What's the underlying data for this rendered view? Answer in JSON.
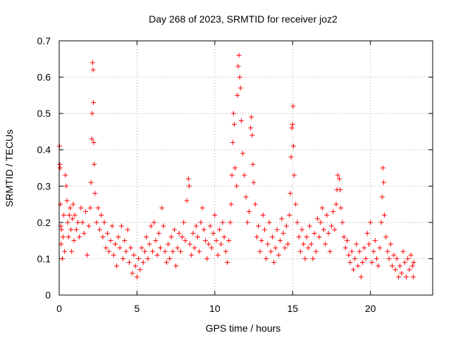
{
  "chart_data": {
    "type": "scatter",
    "title": "Day 268 of 2023, SRMTID for receiver joz2",
    "xlabel": "GPS time / hours",
    "ylabel": "SRMTID / TECUs",
    "xlim": [
      0,
      24
    ],
    "ylim": [
      0,
      0.7
    ],
    "grid": true,
    "marker": "+",
    "color": "#ff0000",
    "xticks": [
      0,
      5,
      10,
      15,
      20
    ],
    "xtick_labels": [
      "0",
      "5",
      "10",
      "15",
      "20"
    ],
    "yticks": [
      0,
      0.1,
      0.2,
      0.3,
      0.4,
      0.5,
      0.6,
      0.7
    ],
    "ytick_labels": [
      "0",
      "0.1",
      "0.2",
      "0.3",
      "0.4",
      "0.5",
      "0.6",
      "0.7"
    ],
    "series": [
      {
        "name": "SRMTID",
        "points": [
          [
            0.02,
            0.41
          ],
          [
            0.04,
            0.36
          ],
          [
            0.06,
            0.35
          ],
          [
            0.08,
            0.25
          ],
          [
            0.1,
            0.19
          ],
          [
            0.12,
            0.14
          ],
          [
            0.15,
            0.18
          ],
          [
            0.2,
            0.1
          ],
          [
            0.25,
            0.16
          ],
          [
            0.3,
            0.22
          ],
          [
            0.35,
            0.12
          ],
          [
            0.4,
            0.33
          ],
          [
            0.45,
            0.3
          ],
          [
            0.5,
            0.26
          ],
          [
            0.55,
            0.2
          ],
          [
            0.6,
            0.16
          ],
          [
            0.65,
            0.22
          ],
          [
            0.7,
            0.24
          ],
          [
            0.75,
            0.18
          ],
          [
            0.8,
            0.12
          ],
          [
            0.85,
            0.21
          ],
          [
            0.9,
            0.25
          ],
          [
            0.95,
            0.15
          ],
          [
            1.0,
            0.22
          ],
          [
            1.1,
            0.18
          ],
          [
            1.2,
            0.2
          ],
          [
            1.3,
            0.16
          ],
          [
            1.4,
            0.24
          ],
          [
            1.5,
            0.2
          ],
          [
            1.6,
            0.17
          ],
          [
            1.7,
            0.23
          ],
          [
            1.8,
            0.11
          ],
          [
            1.9,
            0.19
          ],
          [
            2.0,
            0.24
          ],
          [
            2.05,
            0.31
          ],
          [
            2.1,
            0.43
          ],
          [
            2.12,
            0.5
          ],
          [
            2.15,
            0.64
          ],
          [
            2.18,
            0.62
          ],
          [
            2.2,
            0.53
          ],
          [
            2.22,
            0.42
          ],
          [
            2.25,
            0.36
          ],
          [
            2.3,
            0.28
          ],
          [
            2.4,
            0.2
          ],
          [
            2.5,
            0.24
          ],
          [
            2.6,
            0.18
          ],
          [
            2.7,
            0.22
          ],
          [
            2.8,
            0.16
          ],
          [
            2.9,
            0.2
          ],
          [
            3.0,
            0.13
          ],
          [
            3.1,
            0.17
          ],
          [
            3.2,
            0.12
          ],
          [
            3.3,
            0.15
          ],
          [
            3.4,
            0.19
          ],
          [
            3.5,
            0.11
          ],
          [
            3.6,
            0.14
          ],
          [
            3.7,
            0.08
          ],
          [
            3.8,
            0.16
          ],
          [
            3.9,
            0.13
          ],
          [
            4.0,
            0.19
          ],
          [
            4.1,
            0.1
          ],
          [
            4.2,
            0.15
          ],
          [
            4.3,
            0.12
          ],
          [
            4.4,
            0.18
          ],
          [
            4.5,
            0.09
          ],
          [
            4.6,
            0.13
          ],
          [
            4.7,
            0.06
          ],
          [
            4.8,
            0.11
          ],
          [
            4.9,
            0.08
          ],
          [
            5.0,
            0.05
          ],
          [
            5.1,
            0.1
          ],
          [
            5.2,
            0.07
          ],
          [
            5.3,
            0.13
          ],
          [
            5.4,
            0.09
          ],
          [
            5.5,
            0.12
          ],
          [
            5.6,
            0.16
          ],
          [
            5.7,
            0.1
          ],
          [
            5.8,
            0.14
          ],
          [
            5.9,
            0.19
          ],
          [
            6.0,
            0.12
          ],
          [
            6.1,
            0.2
          ],
          [
            6.2,
            0.15
          ],
          [
            6.3,
            0.11
          ],
          [
            6.4,
            0.17
          ],
          [
            6.5,
            0.13
          ],
          [
            6.6,
            0.24
          ],
          [
            6.7,
            0.19
          ],
          [
            6.8,
            0.12
          ],
          [
            6.9,
            0.09
          ],
          [
            7.0,
            0.14
          ],
          [
            7.1,
            0.1
          ],
          [
            7.2,
            0.16
          ],
          [
            7.3,
            0.12
          ],
          [
            7.4,
            0.18
          ],
          [
            7.5,
            0.08
          ],
          [
            7.6,
            0.13
          ],
          [
            7.7,
            0.17
          ],
          [
            7.8,
            0.12
          ],
          [
            7.9,
            0.16
          ],
          [
            8.0,
            0.2
          ],
          [
            8.1,
            0.15
          ],
          [
            8.2,
            0.26
          ],
          [
            8.3,
            0.32
          ],
          [
            8.35,
            0.3
          ],
          [
            8.4,
            0.14
          ],
          [
            8.5,
            0.11
          ],
          [
            8.6,
            0.17
          ],
          [
            8.7,
            0.13
          ],
          [
            8.8,
            0.19
          ],
          [
            8.9,
            0.16
          ],
          [
            9.0,
            0.12
          ],
          [
            9.1,
            0.2
          ],
          [
            9.2,
            0.24
          ],
          [
            9.3,
            0.18
          ],
          [
            9.4,
            0.15
          ],
          [
            9.5,
            0.1
          ],
          [
            9.6,
            0.14
          ],
          [
            9.7,
            0.19
          ],
          [
            9.8,
            0.13
          ],
          [
            9.9,
            0.17
          ],
          [
            10.0,
            0.22
          ],
          [
            10.1,
            0.15
          ],
          [
            10.2,
            0.11
          ],
          [
            10.3,
            0.18
          ],
          [
            10.4,
            0.14
          ],
          [
            10.5,
            0.2
          ],
          [
            10.6,
            0.16
          ],
          [
            10.7,
            0.12
          ],
          [
            10.8,
            0.09
          ],
          [
            10.9,
            0.15
          ],
          [
            11.0,
            0.2
          ],
          [
            11.05,
            0.25
          ],
          [
            11.1,
            0.33
          ],
          [
            11.15,
            0.42
          ],
          [
            11.2,
            0.5
          ],
          [
            11.25,
            0.47
          ],
          [
            11.3,
            0.35
          ],
          [
            11.4,
            0.3
          ],
          [
            11.45,
            0.55
          ],
          [
            11.5,
            0.63
          ],
          [
            11.55,
            0.66
          ],
          [
            11.6,
            0.6
          ],
          [
            11.65,
            0.57
          ],
          [
            11.7,
            0.48
          ],
          [
            11.8,
            0.39
          ],
          [
            11.9,
            0.33
          ],
          [
            12.0,
            0.27
          ],
          [
            12.1,
            0.2
          ],
          [
            12.2,
            0.23
          ],
          [
            12.3,
            0.46
          ],
          [
            12.35,
            0.49
          ],
          [
            12.4,
            0.44
          ],
          [
            12.45,
            0.36
          ],
          [
            12.5,
            0.31
          ],
          [
            12.6,
            0.25
          ],
          [
            12.7,
            0.16
          ],
          [
            12.8,
            0.19
          ],
          [
            12.9,
            0.12
          ],
          [
            13.0,
            0.15
          ],
          [
            13.1,
            0.22
          ],
          [
            13.2,
            0.18
          ],
          [
            13.3,
            0.1
          ],
          [
            13.4,
            0.14
          ],
          [
            13.5,
            0.2
          ],
          [
            13.6,
            0.12
          ],
          [
            13.7,
            0.16
          ],
          [
            13.8,
            0.09
          ],
          [
            13.9,
            0.13
          ],
          [
            14.0,
            0.18
          ],
          [
            14.1,
            0.11
          ],
          [
            14.2,
            0.15
          ],
          [
            14.3,
            0.21
          ],
          [
            14.4,
            0.17
          ],
          [
            14.5,
            0.13
          ],
          [
            14.6,
            0.19
          ],
          [
            14.7,
            0.14
          ],
          [
            14.8,
            0.22
          ],
          [
            14.85,
            0.28
          ],
          [
            14.9,
            0.38
          ],
          [
            14.95,
            0.46
          ],
          [
            15.0,
            0.47
          ],
          [
            15.03,
            0.52
          ],
          [
            15.05,
            0.41
          ],
          [
            15.1,
            0.33
          ],
          [
            15.2,
            0.25
          ],
          [
            15.3,
            0.2
          ],
          [
            15.4,
            0.16
          ],
          [
            15.5,
            0.12
          ],
          [
            15.6,
            0.18
          ],
          [
            15.7,
            0.14
          ],
          [
            15.8,
            0.1
          ],
          [
            15.9,
            0.16
          ],
          [
            16.0,
            0.13
          ],
          [
            16.1,
            0.19
          ],
          [
            16.2,
            0.14
          ],
          [
            16.3,
            0.1
          ],
          [
            16.4,
            0.17
          ],
          [
            16.5,
            0.12
          ],
          [
            16.6,
            0.21
          ],
          [
            16.7,
            0.16
          ],
          [
            16.8,
            0.2
          ],
          [
            16.9,
            0.24
          ],
          [
            17.0,
            0.18
          ],
          [
            17.1,
            0.14
          ],
          [
            17.2,
            0.22
          ],
          [
            17.3,
            0.17
          ],
          [
            17.4,
            0.12
          ],
          [
            17.5,
            0.19
          ],
          [
            17.6,
            0.23
          ],
          [
            17.7,
            0.18
          ],
          [
            17.8,
            0.25
          ],
          [
            17.85,
            0.29
          ],
          [
            17.9,
            0.33
          ],
          [
            18.0,
            0.32
          ],
          [
            18.05,
            0.29
          ],
          [
            18.1,
            0.24
          ],
          [
            18.2,
            0.2
          ],
          [
            18.3,
            0.16
          ],
          [
            18.4,
            0.13
          ],
          [
            18.5,
            0.15
          ],
          [
            18.6,
            0.11
          ],
          [
            18.7,
            0.09
          ],
          [
            18.8,
            0.12
          ],
          [
            18.9,
            0.07
          ],
          [
            19.0,
            0.1
          ],
          [
            19.1,
            0.14
          ],
          [
            19.2,
            0.08
          ],
          [
            19.3,
            0.12
          ],
          [
            19.4,
            0.05
          ],
          [
            19.5,
            0.09
          ],
          [
            19.6,
            0.13
          ],
          [
            19.7,
            0.1
          ],
          [
            19.8,
            0.17
          ],
          [
            19.9,
            0.14
          ],
          [
            20.0,
            0.2
          ],
          [
            20.1,
            0.09
          ],
          [
            20.2,
            0.12
          ],
          [
            20.3,
            0.15
          ],
          [
            20.4,
            0.1
          ],
          [
            20.5,
            0.08
          ],
          [
            20.6,
            0.13
          ],
          [
            20.7,
            0.2
          ],
          [
            20.75,
            0.27
          ],
          [
            20.8,
            0.35
          ],
          [
            20.85,
            0.31
          ],
          [
            20.9,
            0.22
          ],
          [
            21.0,
            0.16
          ],
          [
            21.1,
            0.12
          ],
          [
            21.2,
            0.1
          ],
          [
            21.3,
            0.14
          ],
          [
            21.4,
            0.08
          ],
          [
            21.5,
            0.11
          ],
          [
            21.6,
            0.07
          ],
          [
            21.7,
            0.1
          ],
          [
            21.8,
            0.05
          ],
          [
            21.9,
            0.08
          ],
          [
            22.0,
            0.06
          ],
          [
            22.1,
            0.12
          ],
          [
            22.2,
            0.09
          ],
          [
            22.3,
            0.05
          ],
          [
            22.4,
            0.1
          ],
          [
            22.5,
            0.07
          ],
          [
            22.6,
            0.11
          ],
          [
            22.7,
            0.08
          ],
          [
            22.75,
            0.05
          ],
          [
            22.78,
            0.09
          ]
        ]
      }
    ]
  }
}
